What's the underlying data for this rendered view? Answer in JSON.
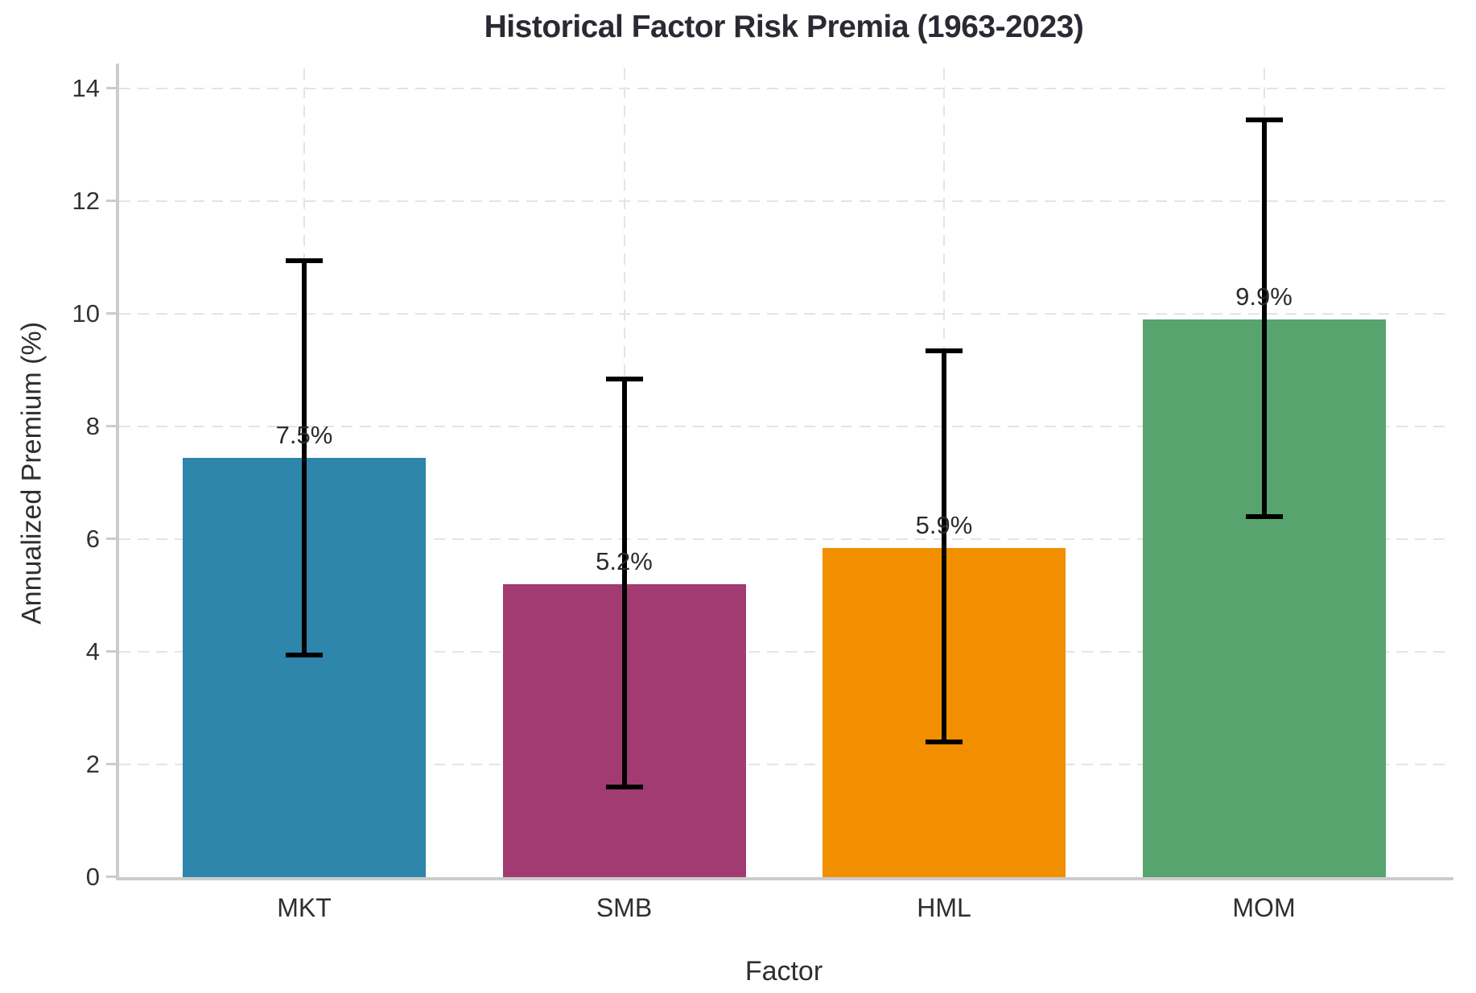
{
  "chart_data": {
    "type": "bar",
    "title": "Historical Factor Risk Premia (1963-2023)",
    "xlabel": "Factor",
    "ylabel": "Annualized Premium (%)",
    "categories": [
      "MKT",
      "SMB",
      "HML",
      "MOM"
    ],
    "values": [
      7.45,
      5.2,
      5.85,
      9.9
    ],
    "bar_labels": [
      "7.5%",
      "5.2%",
      "5.9%",
      "9.9%"
    ],
    "error_low": [
      3.95,
      1.6,
      2.4,
      6.4
    ],
    "error_high": [
      10.95,
      8.85,
      9.35,
      13.45
    ],
    "bar_colors": [
      "#2E86AB",
      "#A23B72",
      "#F18F01",
      "#57A46E"
    ],
    "error_bar_color": "#000000",
    "ylim": [
      0,
      14
    ],
    "yticks": [
      0,
      2,
      4,
      6,
      8,
      10,
      12,
      14
    ],
    "grid": {
      "horizontal": true,
      "vertical": true,
      "style": "dashed"
    },
    "legend_position": "none"
  }
}
